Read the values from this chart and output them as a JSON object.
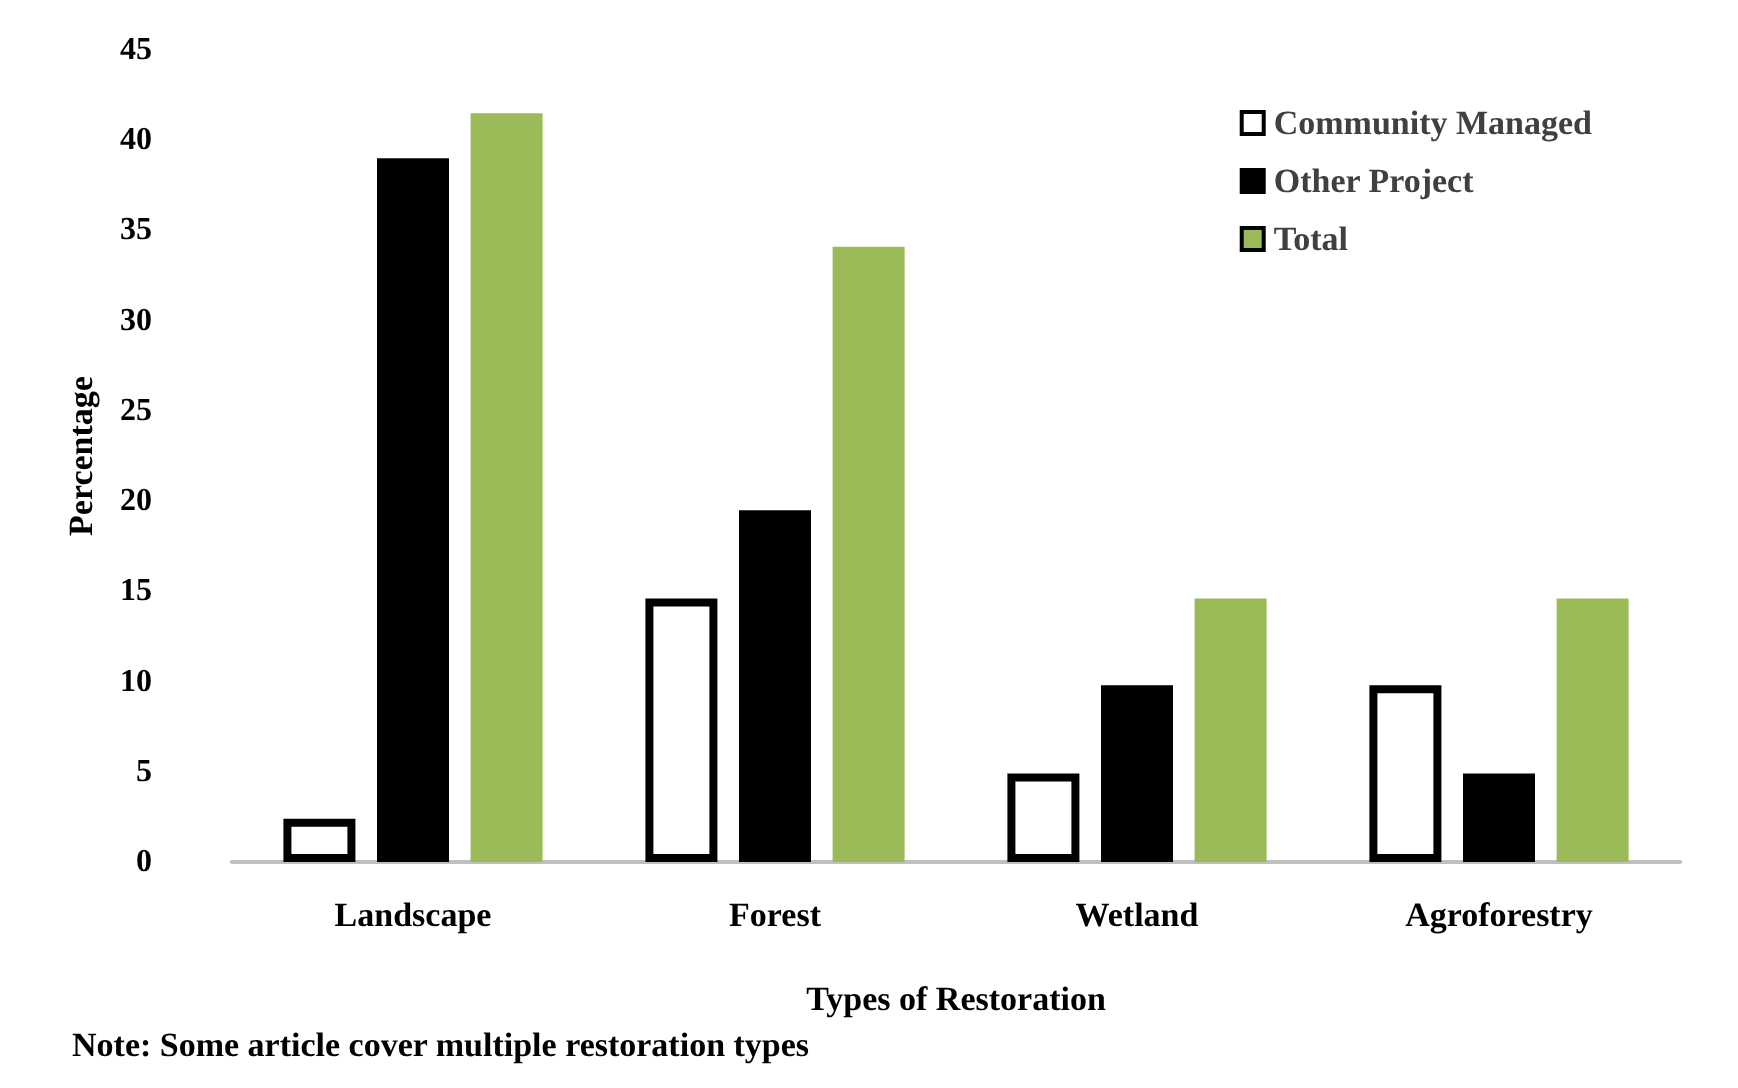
{
  "chart_data": {
    "type": "bar",
    "xlabel": "Types of Restoration",
    "ylabel": "Percentage",
    "categories": [
      "Landscape",
      "Forest",
      "Wetland",
      "Agroforestry"
    ],
    "series": [
      {
        "name": "Community Managed",
        "color": "#ffffff",
        "values": [
          2.4,
          14.6,
          4.9,
          9.8
        ]
      },
      {
        "name": "Other Project",
        "color": "#000000",
        "values": [
          39,
          19.5,
          9.8,
          4.9
        ]
      },
      {
        "name": "Total",
        "color": "#9bbb59",
        "values": [
          41.5,
          34.1,
          14.6,
          14.6
        ]
      }
    ],
    "ylim": [
      0,
      45
    ],
    "yticks": [
      0,
      5,
      10,
      15,
      20,
      25,
      30,
      35,
      40,
      45
    ],
    "grid": false,
    "legend": "top right",
    "annotations": [
      "Note: Some article cover multiple restoration types"
    ]
  }
}
